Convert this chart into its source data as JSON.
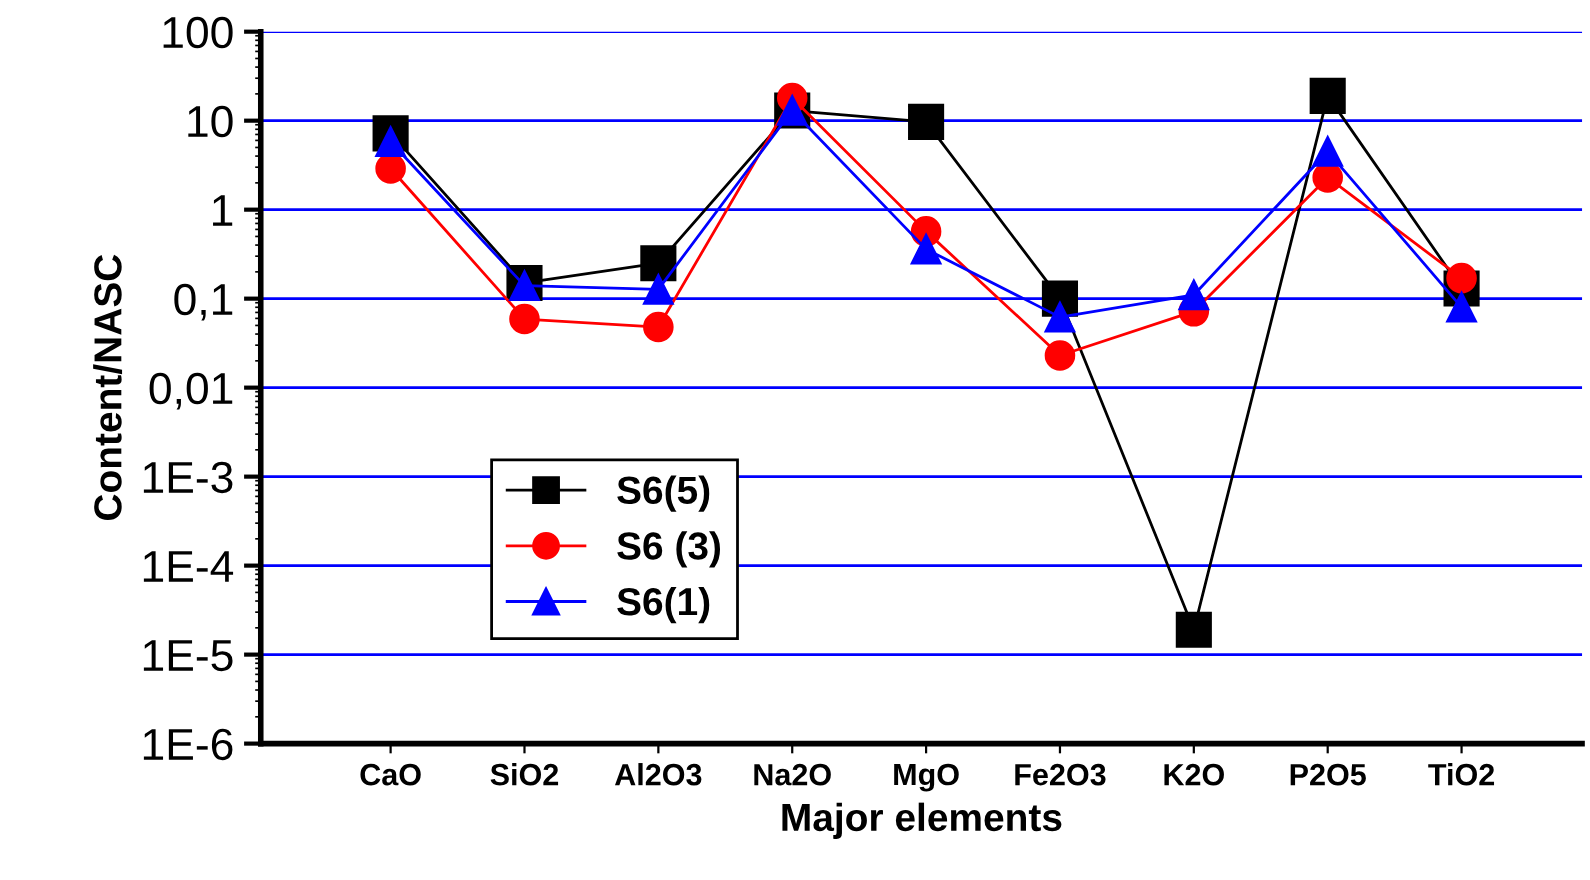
{
  "chart_data": {
    "type": "line",
    "xlabel": "Major elements",
    "ylabel": "Content/NASC",
    "categories": [
      "CaO",
      "SiO2",
      "Al2O3",
      "Na2O",
      "MgO",
      "Fe2O3",
      "K2O",
      "P2O5",
      "TiO2"
    ],
    "series": [
      {
        "name": "S6(5)",
        "color": "#000000",
        "marker": "square",
        "values": [
          7.2,
          0.15,
          0.25,
          13,
          9.7,
          0.1,
          1.9e-05,
          19,
          0.13
        ]
      },
      {
        "name": "S6 (3)",
        "color": "#ff0000",
        "marker": "circle",
        "values": [
          2.9,
          0.059,
          0.048,
          18,
          0.57,
          0.023,
          0.072,
          2.3,
          0.17
        ]
      },
      {
        "name": "S6(1)",
        "color": "#0000ff",
        "marker": "triangle",
        "values": [
          5.8,
          0.14,
          0.127,
          13,
          0.36,
          0.062,
          0.11,
          4.5,
          0.08
        ]
      }
    ],
    "log": "y",
    "ylim": [
      1e-06,
      100
    ],
    "yticks": [
      {
        "value": 1e-06,
        "label": "1E-6"
      },
      {
        "value": 1e-05,
        "label": "1E-5"
      },
      {
        "value": 0.0001,
        "label": "1E-4"
      },
      {
        "value": 0.001,
        "label": "1E-3"
      },
      {
        "value": 0.01,
        "label": "0,01"
      },
      {
        "value": 0.1,
        "label": "0,1"
      },
      1,
      10,
      100
    ],
    "grid": "y",
    "legend": "lower left"
  }
}
